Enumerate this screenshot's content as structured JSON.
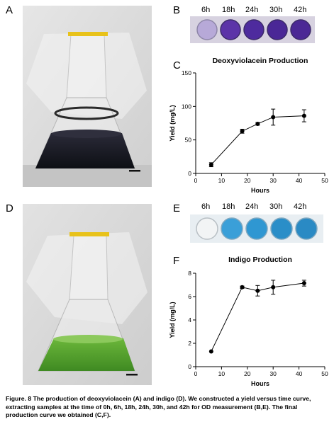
{
  "panels": {
    "A": "A",
    "B": "B",
    "C": "C",
    "D": "D",
    "E": "E",
    "F": "F"
  },
  "well_labels_top": [
    "6h",
    "18h",
    "24h",
    "30h",
    "42h"
  ],
  "well_labels_bottom": [
    "6h",
    "18h",
    "24h",
    "30h",
    "42h"
  ],
  "colors": {
    "violacein_dark": "#1a1a24",
    "violacein_well": "#5a2fa0",
    "indigo_liquid": "#4f9e2c",
    "indigo_well": "#2a8ec8",
    "rubber_band": "#e8c21a",
    "background_photo": "#d9d9d9"
  },
  "chart_data": [
    {
      "type": "line",
      "title": "Deoxyviolacein Production",
      "xlabel": "Hours",
      "ylabel": "Yield  (mg/L)",
      "xlim": [
        0,
        50
      ],
      "ylim": [
        0,
        150
      ],
      "xticks": [
        0,
        10,
        20,
        30,
        40,
        50
      ],
      "yticks": [
        0,
        50,
        100,
        150
      ],
      "x": [
        6,
        18,
        24,
        30,
        42
      ],
      "y": [
        13,
        63,
        74,
        84,
        86
      ],
      "err": [
        3,
        3,
        2,
        12,
        9
      ]
    },
    {
      "type": "line",
      "title": "Indigo Production",
      "xlabel": "Hours",
      "ylabel": "Yield (mg/L)",
      "xlim": [
        0,
        50
      ],
      "ylim": [
        0,
        8
      ],
      "xticks": [
        0,
        10,
        20,
        30,
        40,
        50
      ],
      "yticks": [
        0,
        2,
        4,
        6,
        8
      ],
      "x": [
        6,
        18,
        24,
        30,
        42
      ],
      "y": [
        1.3,
        6.8,
        6.5,
        6.8,
        7.15
      ],
      "err": [
        0,
        0.1,
        0.45,
        0.6,
        0.25
      ]
    }
  ],
  "caption": "Figure. 8 The production of deoxyviolacein (A) and indigo (D). We constructed a yield versus time curve, extracting samples at the time of 0h, 6h, 18h, 24h, 30h, and 42h for OD measurement (B,E). The final production curve we obtained (C,F)."
}
